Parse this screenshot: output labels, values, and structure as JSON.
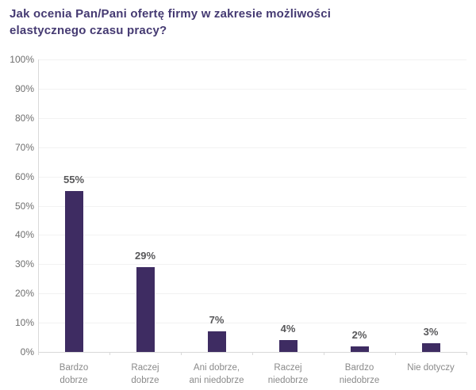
{
  "chart_data": {
    "type": "bar",
    "title": "Jak ocenia Pan/Pani ofertę firmy w zakresie możliwości elastycznego czasu pracy?",
    "title_lines": [
      "Jak ocenia Pan/Pani ofertę firmy w zakresie możliwości",
      "elastycznego czasu pracy?"
    ],
    "categories": [
      "Bardzo dobrze",
      "Raczej dobrze",
      "Ani dobrze, ani niedobrze",
      "Raczej niedobrze",
      "Bardzo niedobrze",
      "Nie dotyczy"
    ],
    "category_lines": [
      [
        "Bardzo",
        "dobrze"
      ],
      [
        "Raczej",
        "dobrze"
      ],
      [
        "Ani dobrze,",
        "ani niedobrze"
      ],
      [
        "Raczej",
        "niedobrze"
      ],
      [
        "Bardzo",
        "niedobrze"
      ],
      [
        "Nie dotyczy"
      ]
    ],
    "values": [
      55,
      29,
      7,
      4,
      2,
      3
    ],
    "value_labels": [
      "55%",
      "29%",
      "7%",
      "4%",
      "2%",
      "3%"
    ],
    "y_tick_labels": [
      "0%",
      "10%",
      "20%",
      "30%",
      "40%",
      "50%",
      "60%",
      "70%",
      "80%",
      "90%",
      "100%"
    ],
    "ylim": [
      0,
      100
    ],
    "y_step": 10,
    "grid": true,
    "legend": "none",
    "xlabel": "",
    "ylabel": "",
    "colors": {
      "bar": "#3e2c62",
      "title": "#453a72",
      "value_label": "#58585a",
      "y_axis_label": "#6e6e6e",
      "x_axis_label": "#8a8a8a",
      "gridline": "#f2f2f2",
      "axis_line": "#d9d9d9",
      "background": "#ffffff"
    }
  }
}
